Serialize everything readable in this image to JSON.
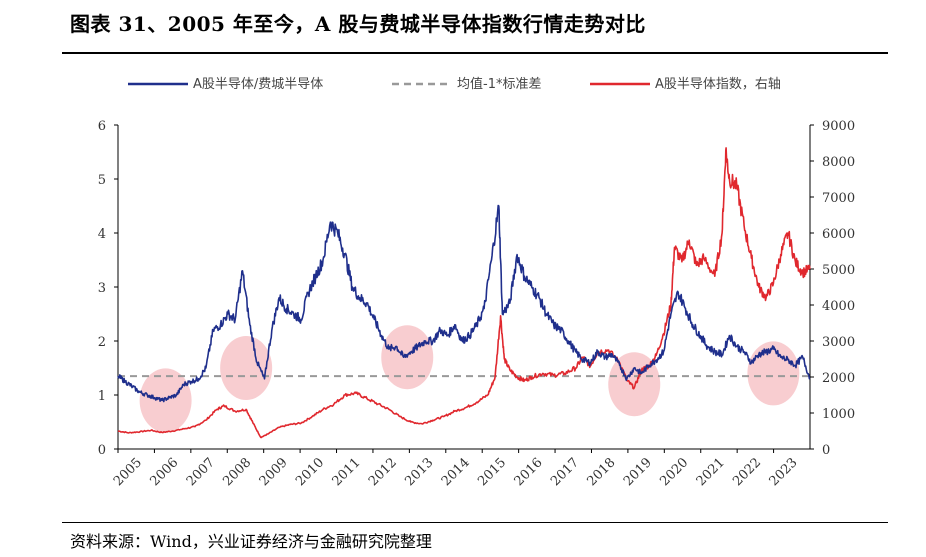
{
  "header": {
    "title": "图表 31、2005 年至今，A 股与费城半导体指数行情走势对比",
    "source": "资料来源：Wind，兴业证券经济与金融研究院整理"
  },
  "colors": {
    "ratio": "#1f2f8c",
    "index": "#e0282e",
    "threshold": "#999999",
    "highlight": "#f5b8bc"
  },
  "chart_data": {
    "type": "line",
    "title": "",
    "legend": {
      "placement": "top",
      "entries": [
        "A股半导体/费城半导体",
        "均值-1*标准差",
        "A股半导体指数，右轴"
      ]
    },
    "x_ticks": [
      "2005",
      "2006",
      "2007",
      "2008",
      "2009",
      "2010",
      "2011",
      "2012",
      "2013",
      "2014",
      "2015",
      "2016",
      "2017",
      "2018",
      "2019",
      "2020",
      "2021",
      "2022",
      "2023"
    ],
    "xlim": [
      2005,
      2023.9
    ],
    "y_left": {
      "ticks": [
        "0",
        "1",
        "2",
        "3",
        "4",
        "5",
        "6"
      ],
      "lim": [
        0,
        6
      ]
    },
    "y_right": {
      "ticks": [
        "0",
        "1000",
        "2000",
        "3000",
        "4000",
        "5000",
        "6000",
        "7000",
        "8000",
        "9000"
      ],
      "lim": [
        0,
        9000
      ]
    },
    "threshold": {
      "name": "均值-1*标准差",
      "value": 1.35,
      "axis": "left"
    },
    "series": [
      {
        "name": "A股半导体/费城半导体",
        "axis": "left",
        "points": [
          [
            2005.0,
            1.35
          ],
          [
            2005.2,
            1.25
          ],
          [
            2005.4,
            1.15
          ],
          [
            2005.6,
            1.05
          ],
          [
            2005.8,
            1.0
          ],
          [
            2006.0,
            0.95
          ],
          [
            2006.2,
            0.9
          ],
          [
            2006.4,
            0.95
          ],
          [
            2006.6,
            1.0
          ],
          [
            2006.8,
            1.2
          ],
          [
            2007.0,
            1.25
          ],
          [
            2007.2,
            1.3
          ],
          [
            2007.4,
            1.5
          ],
          [
            2007.6,
            2.2
          ],
          [
            2007.8,
            2.3
          ],
          [
            2008.0,
            2.5
          ],
          [
            2008.2,
            2.4
          ],
          [
            2008.4,
            3.3
          ],
          [
            2008.6,
            2.3
          ],
          [
            2008.8,
            1.6
          ],
          [
            2009.0,
            1.3
          ],
          [
            2009.2,
            2.2
          ],
          [
            2009.4,
            2.8
          ],
          [
            2009.6,
            2.6
          ],
          [
            2009.8,
            2.5
          ],
          [
            2010.0,
            2.4
          ],
          [
            2010.2,
            2.9
          ],
          [
            2010.4,
            3.2
          ],
          [
            2010.6,
            3.5
          ],
          [
            2010.8,
            4.2
          ],
          [
            2011.0,
            4.0
          ],
          [
            2011.2,
            3.6
          ],
          [
            2011.4,
            3.0
          ],
          [
            2011.6,
            2.8
          ],
          [
            2011.8,
            2.7
          ],
          [
            2012.0,
            2.4
          ],
          [
            2012.2,
            2.1
          ],
          [
            2012.4,
            1.85
          ],
          [
            2012.6,
            1.9
          ],
          [
            2012.8,
            1.7
          ],
          [
            2013.0,
            1.8
          ],
          [
            2013.2,
            1.9
          ],
          [
            2013.4,
            2.0
          ],
          [
            2013.6,
            2.0
          ],
          [
            2013.8,
            2.2
          ],
          [
            2014.0,
            2.1
          ],
          [
            2014.2,
            2.3
          ],
          [
            2014.4,
            2.0
          ],
          [
            2014.6,
            2.1
          ],
          [
            2014.8,
            2.3
          ],
          [
            2015.0,
            2.6
          ],
          [
            2015.2,
            3.5
          ],
          [
            2015.4,
            4.5
          ],
          [
            2015.5,
            2.5
          ],
          [
            2015.7,
            2.7
          ],
          [
            2015.9,
            3.6
          ],
          [
            2016.1,
            3.2
          ],
          [
            2016.3,
            3.0
          ],
          [
            2016.5,
            2.8
          ],
          [
            2016.7,
            2.5
          ],
          [
            2016.9,
            2.3
          ],
          [
            2017.1,
            2.2
          ],
          [
            2017.3,
            2.0
          ],
          [
            2017.5,
            1.8
          ],
          [
            2017.7,
            1.65
          ],
          [
            2017.9,
            1.6
          ],
          [
            2018.1,
            1.8
          ],
          [
            2018.3,
            1.7
          ],
          [
            2018.5,
            1.75
          ],
          [
            2018.7,
            1.55
          ],
          [
            2018.9,
            1.3
          ],
          [
            2019.1,
            1.5
          ],
          [
            2019.3,
            1.4
          ],
          [
            2019.5,
            1.55
          ],
          [
            2019.7,
            1.65
          ],
          [
            2019.9,
            1.8
          ],
          [
            2020.1,
            2.5
          ],
          [
            2020.3,
            2.9
          ],
          [
            2020.5,
            2.6
          ],
          [
            2020.7,
            2.3
          ],
          [
            2020.9,
            2.1
          ],
          [
            2021.1,
            1.9
          ],
          [
            2021.3,
            1.8
          ],
          [
            2021.5,
            1.75
          ],
          [
            2021.7,
            2.1
          ],
          [
            2021.9,
            1.9
          ],
          [
            2022.1,
            1.8
          ],
          [
            2022.3,
            1.6
          ],
          [
            2022.5,
            1.75
          ],
          [
            2022.7,
            1.8
          ],
          [
            2022.9,
            1.85
          ],
          [
            2023.1,
            1.7
          ],
          [
            2023.3,
            1.65
          ],
          [
            2023.5,
            1.55
          ],
          [
            2023.7,
            1.7
          ],
          [
            2023.9,
            1.3
          ]
        ]
      },
      {
        "name": "A股半导体指数，右轴",
        "axis": "right",
        "points": [
          [
            2005.0,
            500
          ],
          [
            2005.3,
            450
          ],
          [
            2005.6,
            480
          ],
          [
            2005.9,
            520
          ],
          [
            2006.2,
            460
          ],
          [
            2006.5,
            500
          ],
          [
            2006.8,
            560
          ],
          [
            2007.1,
            620
          ],
          [
            2007.4,
            800
          ],
          [
            2007.7,
            1100
          ],
          [
            2007.9,
            1200
          ],
          [
            2008.2,
            1050
          ],
          [
            2008.5,
            1100
          ],
          [
            2008.7,
            700
          ],
          [
            2008.9,
            320
          ],
          [
            2009.1,
            420
          ],
          [
            2009.4,
            600
          ],
          [
            2009.7,
            680
          ],
          [
            2010.0,
            720
          ],
          [
            2010.3,
            900
          ],
          [
            2010.6,
            1100
          ],
          [
            2010.9,
            1250
          ],
          [
            2011.2,
            1500
          ],
          [
            2011.5,
            1550
          ],
          [
            2011.8,
            1400
          ],
          [
            2012.1,
            1250
          ],
          [
            2012.4,
            1100
          ],
          [
            2012.7,
            900
          ],
          [
            2013.0,
            750
          ],
          [
            2013.3,
            700
          ],
          [
            2013.6,
            800
          ],
          [
            2013.9,
            900
          ],
          [
            2014.2,
            1050
          ],
          [
            2014.5,
            1150
          ],
          [
            2014.8,
            1300
          ],
          [
            2015.1,
            1500
          ],
          [
            2015.3,
            2000
          ],
          [
            2015.45,
            3700
          ],
          [
            2015.55,
            2500
          ],
          [
            2015.7,
            2200
          ],
          [
            2015.9,
            2000
          ],
          [
            2016.1,
            1900
          ],
          [
            2016.3,
            2000
          ],
          [
            2016.6,
            2100
          ],
          [
            2016.9,
            2050
          ],
          [
            2017.2,
            2100
          ],
          [
            2017.5,
            2250
          ],
          [
            2017.7,
            2550
          ],
          [
            2017.9,
            2300
          ],
          [
            2018.1,
            2700
          ],
          [
            2018.4,
            2750
          ],
          [
            2018.7,
            2400
          ],
          [
            2018.9,
            1900
          ],
          [
            2019.1,
            1700
          ],
          [
            2019.3,
            2200
          ],
          [
            2019.5,
            2300
          ],
          [
            2019.7,
            2600
          ],
          [
            2019.9,
            3200
          ],
          [
            2020.1,
            4000
          ],
          [
            2020.2,
            5600
          ],
          [
            2020.4,
            5200
          ],
          [
            2020.6,
            5800
          ],
          [
            2020.8,
            5100
          ],
          [
            2021.0,
            5300
          ],
          [
            2021.3,
            4800
          ],
          [
            2021.5,
            6000
          ],
          [
            2021.6,
            8300
          ],
          [
            2021.7,
            7500
          ],
          [
            2021.9,
            7300
          ],
          [
            2022.1,
            6200
          ],
          [
            2022.3,
            5300
          ],
          [
            2022.5,
            4500
          ],
          [
            2022.7,
            4200
          ],
          [
            2022.9,
            4600
          ],
          [
            2023.1,
            5400
          ],
          [
            2023.3,
            6000
          ],
          [
            2023.5,
            5200
          ],
          [
            2023.7,
            4900
          ],
          [
            2023.9,
            5000
          ]
        ]
      }
    ],
    "highlight_regions": [
      {
        "x": 2006.3,
        "y": 0.9
      },
      {
        "x": 2008.5,
        "y": 1.5
      },
      {
        "x": 2012.9,
        "y": 1.7
      },
      {
        "x": 2019.1,
        "y": 1.2
      },
      {
        "x": 2022.9,
        "y": 1.4
      }
    ]
  }
}
